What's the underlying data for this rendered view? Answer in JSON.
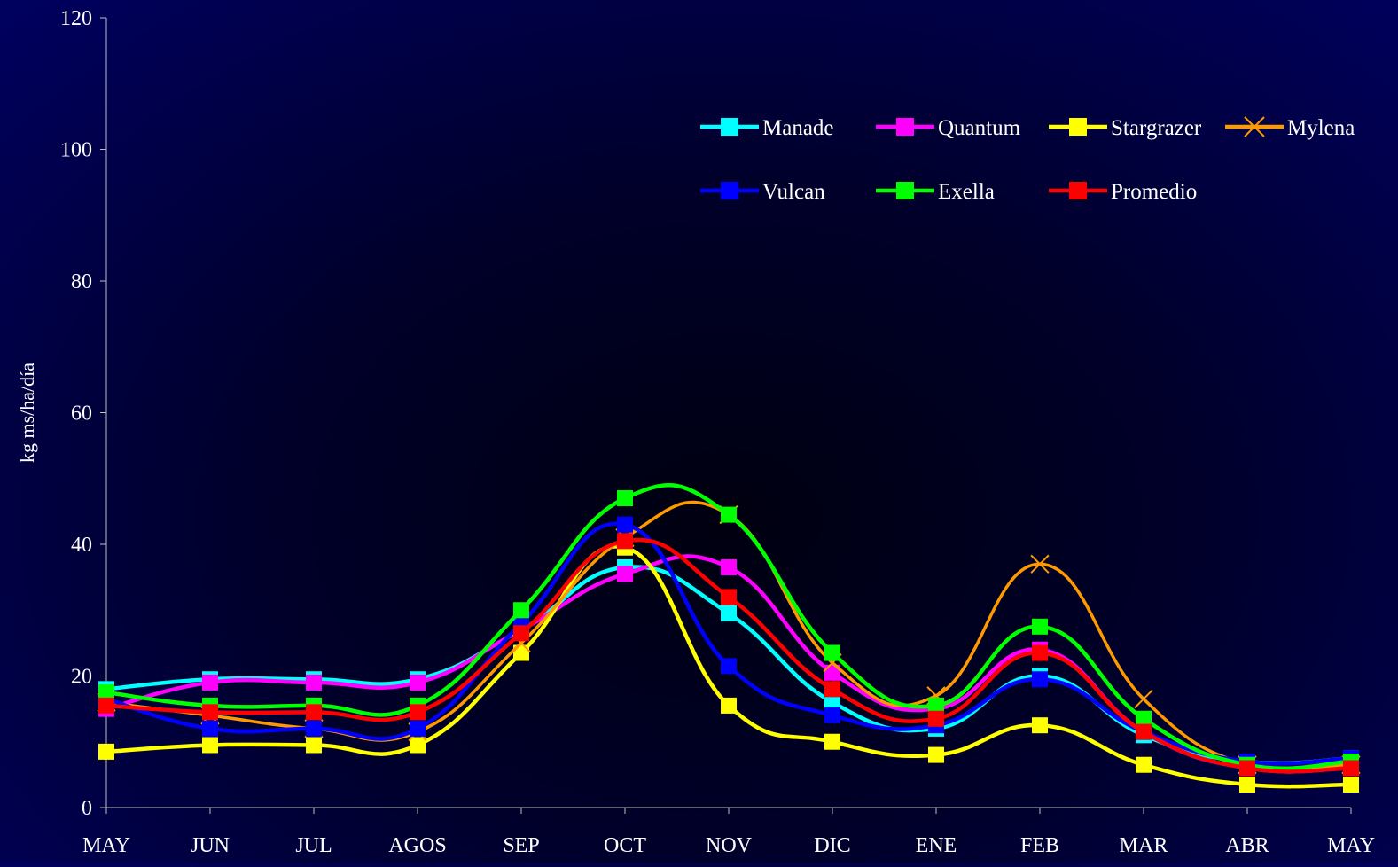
{
  "chart_data": {
    "type": "line",
    "title": "",
    "xlabel": "",
    "ylabel": "kg ms/ha/día",
    "categories": [
      "MAY",
      "JUN",
      "JUL",
      "AGOS",
      "SEP",
      "OCT",
      "NOV",
      "DIC",
      "ENE",
      "FEB",
      "MAR",
      "ABR",
      "MAY"
    ],
    "ylim": [
      0,
      120
    ],
    "yticks": [
      0,
      20,
      40,
      60,
      80,
      100,
      120
    ],
    "grid": false,
    "legend": "top-right",
    "series": [
      {
        "name": "Manade",
        "color": "#00ffff",
        "marker": "square",
        "values": [
          18,
          19.5,
          19.5,
          19.5,
          27,
          36.5,
          29.5,
          16,
          12,
          20,
          11,
          7,
          7.5
        ]
      },
      {
        "name": "Quantum",
        "color": "#ff00ff",
        "marker": "square",
        "values": [
          15,
          19,
          19,
          19,
          27,
          35.5,
          36.5,
          20.5,
          15,
          24,
          11.5,
          6,
          6
        ]
      },
      {
        "name": "Stargrazer",
        "color": "#ffff00",
        "marker": "square",
        "values": [
          8.5,
          9.5,
          9.5,
          9.5,
          23.5,
          39.5,
          15.5,
          10,
          8,
          12.5,
          6.5,
          3.5,
          3.5
        ]
      },
      {
        "name": "Mylena",
        "color": "#ff9900",
        "marker": "x",
        "values": [
          16,
          14,
          12,
          11.5,
          25,
          41,
          44.5,
          22,
          17,
          37,
          16.5,
          6.5,
          6.5
        ]
      },
      {
        "name": "Vulcan",
        "color": "#0000ff",
        "marker": "square",
        "values": [
          16.5,
          12,
          12,
          12,
          28,
          43,
          21.5,
          14,
          12.5,
          19.5,
          11.5,
          7,
          7.5
        ]
      },
      {
        "name": "Exella",
        "color": "#00ff00",
        "marker": "square",
        "values": [
          17.5,
          15.5,
          15.5,
          15.5,
          30,
          47,
          44.5,
          23.5,
          15.5,
          27.5,
          13.5,
          6.5,
          7
        ]
      },
      {
        "name": "Promedio",
        "color": "#ff0000",
        "marker": "square",
        "values": [
          15.5,
          14.5,
          14.5,
          14.5,
          26.5,
          40.5,
          32,
          18,
          13.5,
          23.5,
          11.5,
          6,
          6
        ]
      }
    ]
  }
}
